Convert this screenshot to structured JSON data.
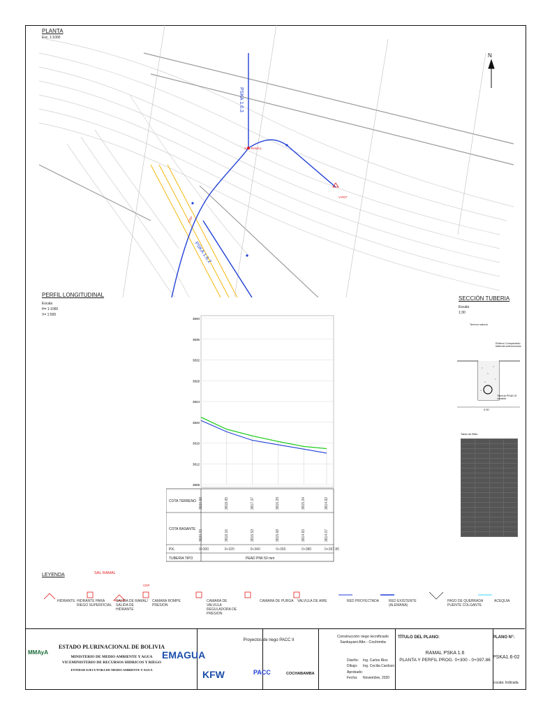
{
  "planta": {
    "title": "PLANTA",
    "scale": "Esc. 1:1000",
    "north": "N",
    "labels": {
      "pipe_upper": "PSKA 1.6.3",
      "pipe_mid": "PSKA 1.6.2",
      "sal_ramal": "SAL RAMAL",
      "v_end": "V-R07",
      "crp": "CRP"
    }
  },
  "perfil": {
    "title": "PERFIL LONGITUDINAL",
    "scale_label": "Escala",
    "scale_h": "H= 1:1000",
    "scale_v": "V= 1:500",
    "y_ticks": [
      "3840",
      "3836",
      "3832",
      "3828",
      "3824",
      "3820",
      "3816",
      "3812",
      "3808"
    ],
    "rows": {
      "terreno_label": "COTA TERRENO",
      "rasante_label": "COTA RASANTE",
      "pk_label": "P.K.",
      "tuberia_label": "TUBERIA TIPO",
      "tuberia_value": "PEAD PN6 50 mm"
    },
    "cota_terreno": [
      "3820.98",
      "3818.65",
      "3817.37",
      "3816.29",
      "3815.34",
      "3814.92"
    ],
    "cota_rasante": [
      "3820.33",
      "3818.16",
      "3816.53",
      "3815.68",
      "3814.83",
      "3814.07"
    ],
    "pk": [
      "0+300",
      "0+320",
      "0+340",
      "0+360",
      "0+380",
      "0+397.86"
    ]
  },
  "chart_data": {
    "type": "line",
    "title": "PERFIL LONGITUDINAL",
    "x": [
      300,
      320,
      340,
      360,
      380,
      397.86
    ],
    "series": [
      {
        "name": "COTA TERRENO",
        "values": [
          3820.98,
          3818.65,
          3817.37,
          3816.29,
          3815.34,
          3814.92
        ]
      },
      {
        "name": "COTA RASANTE",
        "values": [
          3820.33,
          3818.16,
          3816.53,
          3815.68,
          3814.83,
          3814.07
        ]
      }
    ],
    "ylim": [
      3808,
      3840
    ]
  },
  "seccion": {
    "title": "SECCIÓN TUBERIA",
    "scale_label": "Escala",
    "scale": "1:30",
    "terreno": "Terreno natural",
    "relleno": "Relleno Compactado Material seleccionado",
    "tuberia": "Tuberia PEAD Ø variable",
    "dim": "0.50",
    "table_title": "Tabla de BMs"
  },
  "leyenda": {
    "title": "LEYENDA",
    "items": [
      "HIDRANTE",
      "HIDRANTE PARA RIEGO SUPERFICIAL",
      "SALIDA DE RAMAL/ SALIDA DE HIDRANTE",
      "CAMARA ROMPE PRESION",
      "CAMARA DE VALVULA REGULADORA DE PRESION",
      "CAMARA DE PURGA",
      "VALVULA DE AIRE",
      "RED PROYECTADA",
      "RED EXISTENTE (ALEMANA)",
      "PASO DE QUEBRADA PUENTE COLGANTE",
      "ACEQUIA"
    ],
    "sal_ramal": "SAL RAMAL",
    "crp": "CRP"
  },
  "titleblock": {
    "org": "ESTADO PLURINACIONAL DE BOLIVIA",
    "ministry": "MINISTERIO DE MEDIO AMBIENTE Y AGUA",
    "vice": "VICEMINISTERIO DE RECURSOS HIDRICOS Y RIEGO",
    "entity": "ENTIDAD EJECUTORA DE MEDIO AMBIENTE Y AGUA",
    "mmaya": "MMAyA",
    "emagua": "EMAGUA",
    "kfw": "KFW",
    "project": "Proyectos de riego PACC II",
    "pacc": "PACC",
    "gobierno": "COCHABAMBA",
    "construccion": "Construcción riego tecnificado",
    "location": "Sankayani Alto - Cochimita",
    "diseno_label": "Diseño:",
    "diseno": "Ing. Carlos Rios",
    "dibujo_label": "Dibujo:",
    "dibujo": "Ing. Cecilia Cardozo",
    "aprobado_label": "Aprobado:",
    "fecha_label": "Fecha:",
    "fecha": "Noviembre, 2020",
    "titulo_label": "TÍTULO DEL PLANO:",
    "titulo1": "RAMAL PSKA 1.6",
    "titulo2": "PLANTA Y PERFIL PROG. 0+300 - 0+397.86",
    "plano_label": "PLANO N°:",
    "plano": "PSKA1.6-02",
    "escala": "Escala: Indicada"
  },
  "colors": {
    "pipe": "#1f3fd6",
    "terrain": "#22cc22",
    "marker": "#e21b1b",
    "contour": "#c8c8c8",
    "acequia": "#f2b90a"
  }
}
